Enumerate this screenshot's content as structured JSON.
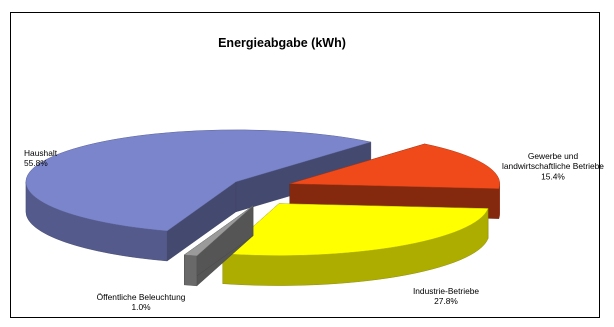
{
  "chart_data": {
    "type": "pie",
    "title": "Energieabgabe (kWh)",
    "three_d": true,
    "exploded": true,
    "slices": [
      {
        "label_lines": [
          "Gewerbe und",
          "landwirtschaftliche Betriebe"
        ],
        "percent_label": "15.4%",
        "value": 15.4,
        "color": "#f04a1a"
      },
      {
        "label_lines": [
          "Industrie-Betriebe"
        ],
        "percent_label": "27.8%",
        "value": 27.8,
        "color": "#ffff00"
      },
      {
        "label_lines": [
          "Öffentliche Beleuchtung"
        ],
        "percent_label": "1.0%",
        "value": 1.0,
        "color": "#9a9a9a"
      },
      {
        "label_lines": [
          "Haushalt"
        ],
        "percent_label": "55.8%",
        "value": 55.8,
        "color": "#7b85cc"
      }
    ]
  }
}
